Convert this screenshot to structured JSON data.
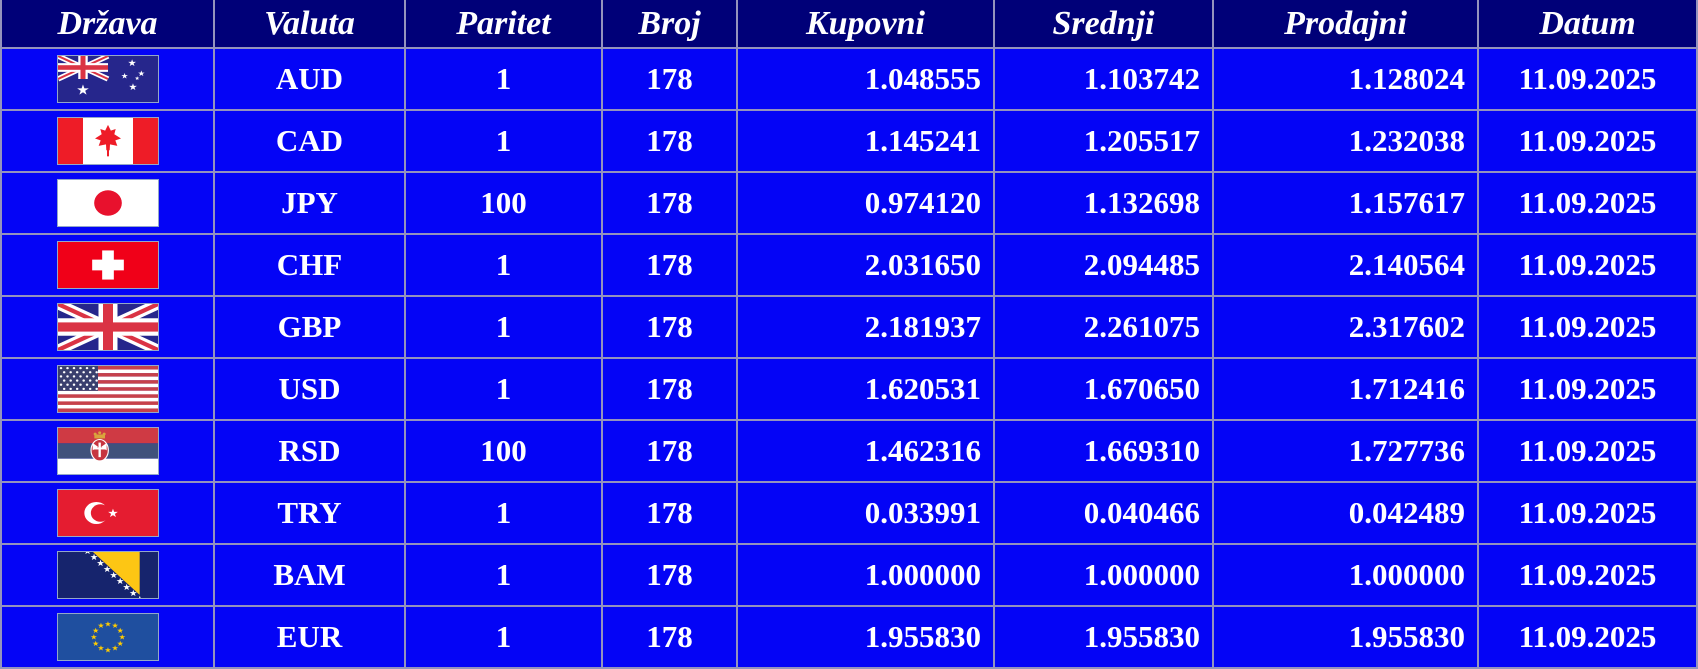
{
  "colors": {
    "header_bg": "#000078",
    "row_bg": "#0404f6",
    "grid": "#9493bd",
    "text": "#ffffff"
  },
  "table": {
    "columns": [
      {
        "id": "drzava",
        "label": "Država"
      },
      {
        "id": "valuta",
        "label": "Valuta"
      },
      {
        "id": "paritet",
        "label": "Paritet"
      },
      {
        "id": "broj",
        "label": "Broj"
      },
      {
        "id": "kupovni",
        "label": "Kupovni"
      },
      {
        "id": "srednji",
        "label": "Srednji"
      },
      {
        "id": "prodajni",
        "label": "Prodajni"
      },
      {
        "id": "datum",
        "label": "Datum"
      }
    ],
    "rows": [
      {
        "flag": "australia",
        "valuta": "AUD",
        "paritet": "1",
        "broj": "178",
        "kupovni": "1.048555",
        "srednji": "1.103742",
        "prodajni": "1.128024",
        "datum": "11.09.2025"
      },
      {
        "flag": "canada",
        "valuta": "CAD",
        "paritet": "1",
        "broj": "178",
        "kupovni": "1.145241",
        "srednji": "1.205517",
        "prodajni": "1.232038",
        "datum": "11.09.2025"
      },
      {
        "flag": "japan",
        "valuta": "JPY",
        "paritet": "100",
        "broj": "178",
        "kupovni": "0.974120",
        "srednji": "1.132698",
        "prodajni": "1.157617",
        "datum": "11.09.2025"
      },
      {
        "flag": "switzerland",
        "valuta": "CHF",
        "paritet": "1",
        "broj": "178",
        "kupovni": "2.031650",
        "srednji": "2.094485",
        "prodajni": "2.140564",
        "datum": "11.09.2025"
      },
      {
        "flag": "united-kingdom",
        "valuta": "GBP",
        "paritet": "1",
        "broj": "178",
        "kupovni": "2.181937",
        "srednji": "2.261075",
        "prodajni": "2.317602",
        "datum": "11.09.2025"
      },
      {
        "flag": "united-states",
        "valuta": "USD",
        "paritet": "1",
        "broj": "178",
        "kupovni": "1.620531",
        "srednji": "1.670650",
        "prodajni": "1.712416",
        "datum": "11.09.2025"
      },
      {
        "flag": "serbia",
        "valuta": "RSD",
        "paritet": "100",
        "broj": "178",
        "kupovni": "1.462316",
        "srednji": "1.669310",
        "prodajni": "1.727736",
        "datum": "11.09.2025"
      },
      {
        "flag": "turkey",
        "valuta": "TRY",
        "paritet": "1",
        "broj": "178",
        "kupovni": "0.033991",
        "srednji": "0.040466",
        "prodajni": "0.042489",
        "datum": "11.09.2025"
      },
      {
        "flag": "bosnia-herzegovina",
        "valuta": "BAM",
        "paritet": "1",
        "broj": "178",
        "kupovni": "1.000000",
        "srednji": "1.000000",
        "prodajni": "1.000000",
        "datum": "11.09.2025"
      },
      {
        "flag": "european-union",
        "valuta": "EUR",
        "paritet": "1",
        "broj": "178",
        "kupovni": "1.955830",
        "srednji": "1.955830",
        "prodajni": "1.955830",
        "datum": "11.09.2025"
      }
    ]
  }
}
